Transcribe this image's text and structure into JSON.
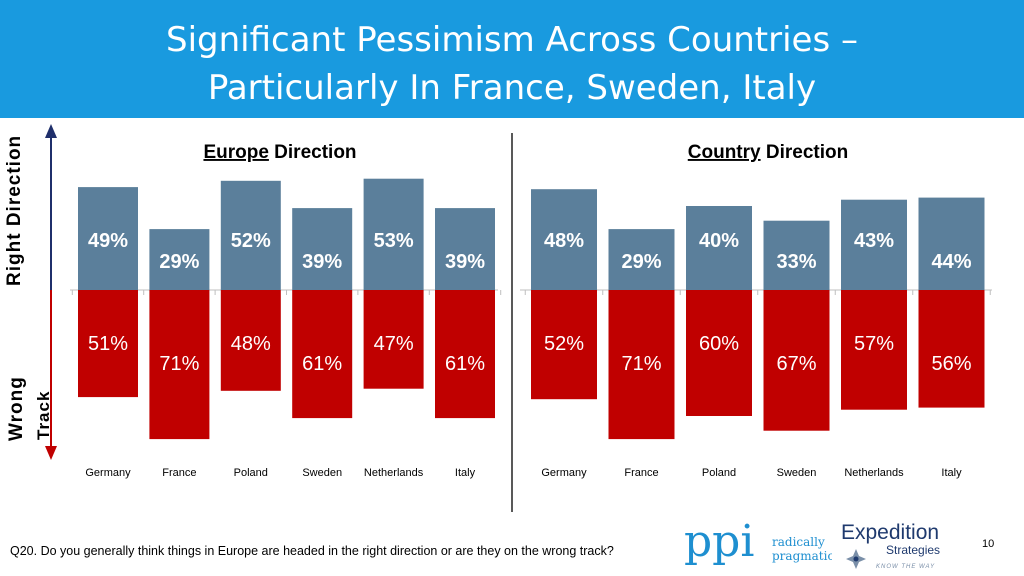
{
  "header": {
    "title_line1": "Significant Pessimism Across Countries –",
    "title_line2": "Particularly In France, Sweden, Italy",
    "bg_color": "#199ADF"
  },
  "axis": {
    "top_label": "Right Direction",
    "bottom_label_line1": "Wrong",
    "bottom_label_line2": "Track"
  },
  "colors": {
    "right_direction": "#5B7F9B",
    "wrong_track": "#C00000",
    "arrow_top": "#1F2F6B",
    "arrow_bottom": "#C00000"
  },
  "chart_data": [
    {
      "type": "bar",
      "title_underlined": "Europe",
      "title_rest": " Direction",
      "categories": [
        "Germany",
        "France",
        "Poland",
        "Sweden",
        "Netherlands",
        "Italy"
      ],
      "series": [
        {
          "name": "Right Direction",
          "values": [
            49,
            29,
            52,
            39,
            53,
            39
          ]
        },
        {
          "name": "Wrong Track",
          "values": [
            51,
            71,
            48,
            61,
            47,
            61
          ]
        }
      ]
    },
    {
      "type": "bar",
      "title_underlined": "Country",
      "title_rest": " Direction",
      "categories": [
        "Germany",
        "France",
        "Poland",
        "Sweden",
        "Netherlands",
        "Italy"
      ],
      "series": [
        {
          "name": "Right Direction",
          "values": [
            48,
            29,
            40,
            33,
            43,
            44
          ]
        },
        {
          "name": "Wrong Track",
          "values": [
            52,
            71,
            60,
            67,
            57,
            56
          ]
        }
      ]
    }
  ],
  "footer": {
    "question": "Q20. Do you generally think things in Europe are headed in the right direction or are they on the wrong track?",
    "page_number": "10",
    "ppi_logo": {
      "mark": "ppi",
      "line1": "radically",
      "line2": "pragmatic"
    },
    "expedition_logo": {
      "line1": "Expedition",
      "line2": "Strategies",
      "tagline": "KNOW THE WAY"
    }
  }
}
